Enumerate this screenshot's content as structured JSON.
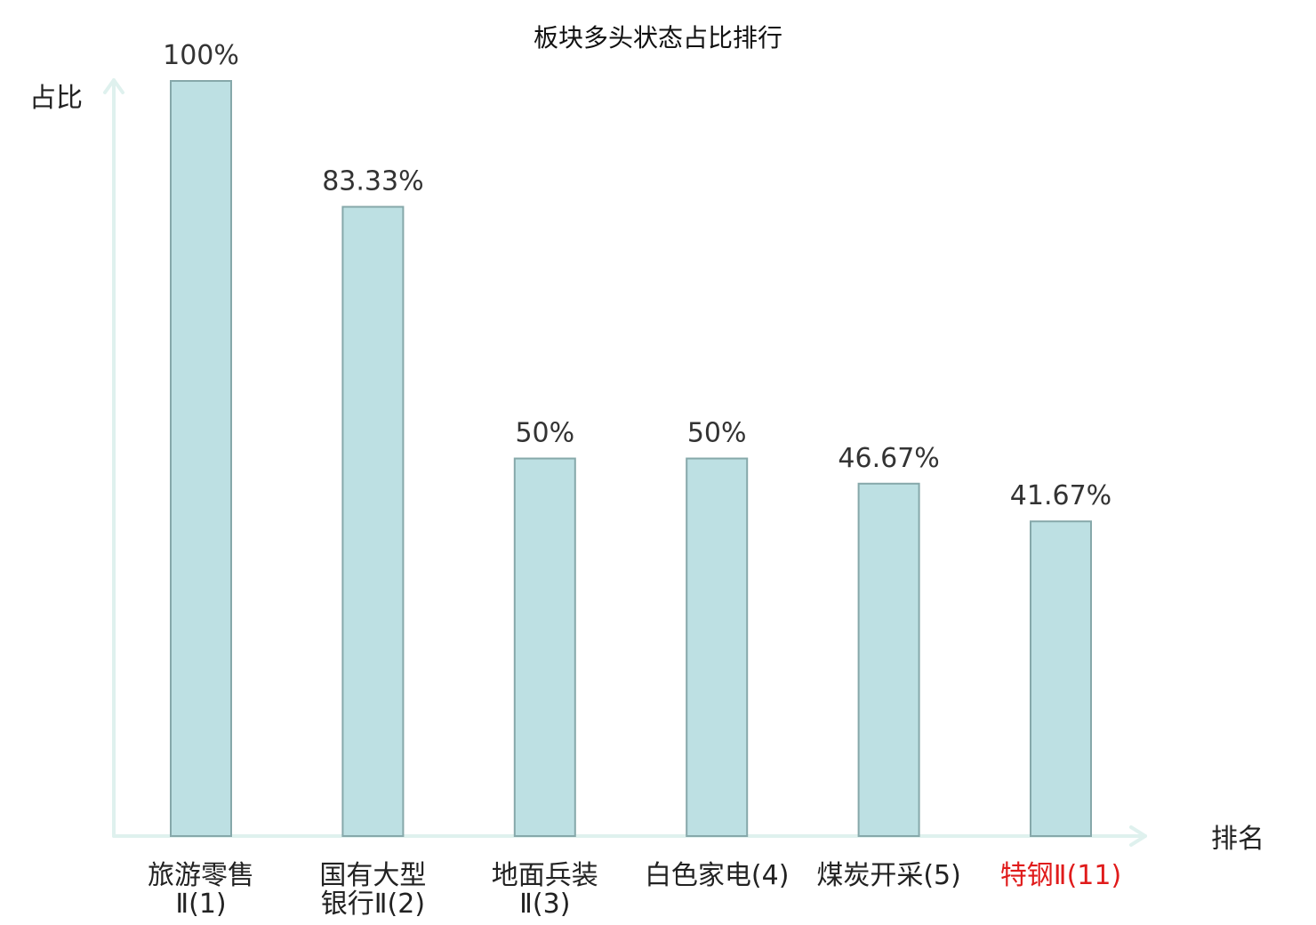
{
  "chart_data": {
    "type": "bar",
    "title": "板块多头状态占比排行",
    "ylabel": "占比",
    "xlabel": "排名",
    "ylim": [
      0,
      100
    ],
    "grid": false,
    "categories": [
      [
        "旅游零售",
        "Ⅱ(1)"
      ],
      [
        "国有大型",
        "银行Ⅱ(2)"
      ],
      [
        "地面兵装",
        "Ⅱ(3)"
      ],
      [
        "白色家电(4)"
      ],
      [
        "煤炭开采(5)"
      ],
      [
        "特钢Ⅱ(11)"
      ]
    ],
    "values": [
      100,
      83.33,
      50,
      50,
      46.67,
      41.67
    ],
    "value_labels": [
      "100%",
      "83.33%",
      "50%",
      "50%",
      "46.67%",
      "41.67%"
    ],
    "highlight_index": 5,
    "colors": {
      "bar_fill": "#bde0e3",
      "bar_stroke": "#86a8aa",
      "axis": "#dff1ee",
      "highlight_text": "#e01b1b"
    }
  }
}
